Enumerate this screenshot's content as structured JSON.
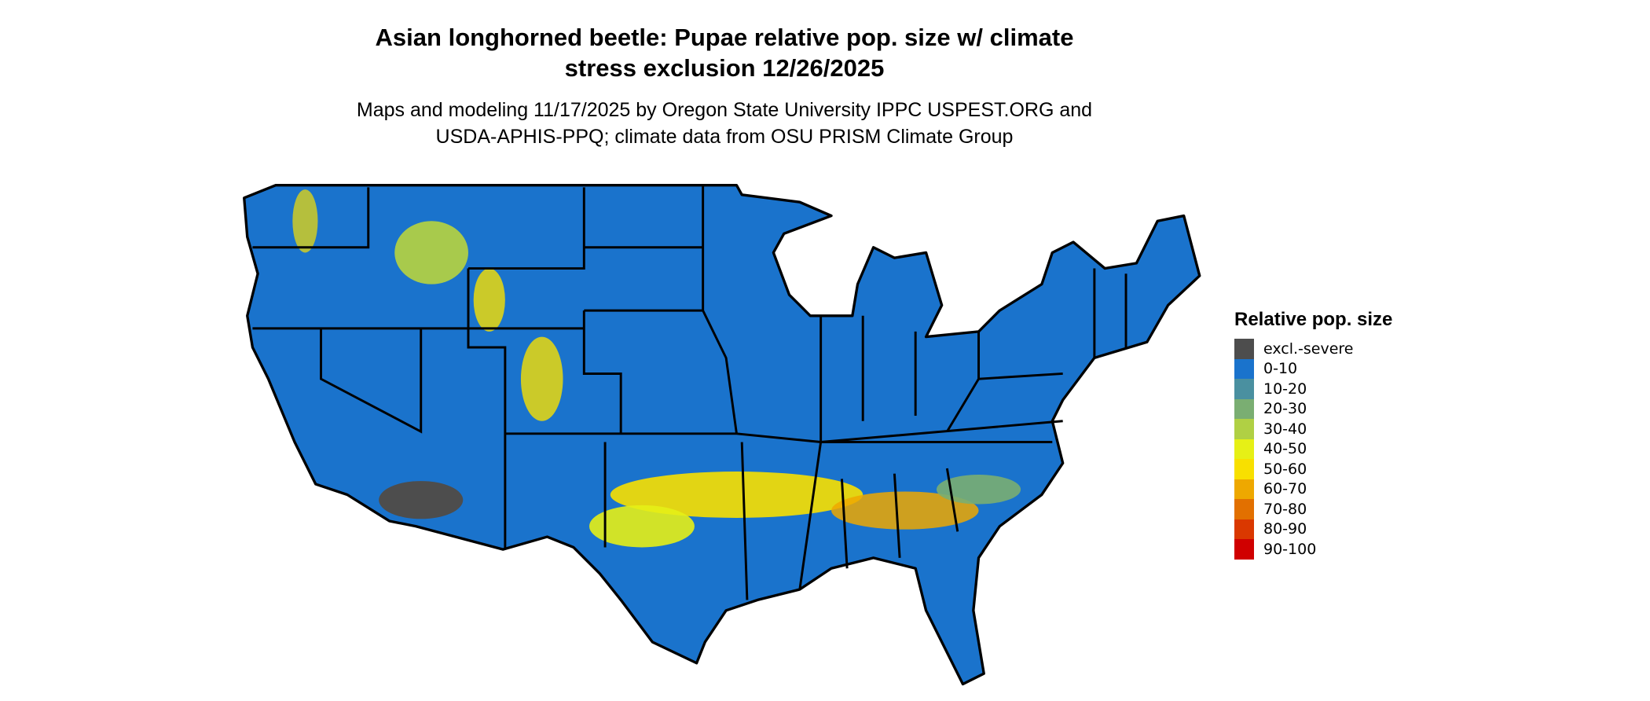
{
  "title": {
    "line1": "Asian longhorned beetle: Pupae relative pop. size w/ climate",
    "line2": "stress exclusion 12/26/2025"
  },
  "subtitle": {
    "line1": "Maps and modeling 11/17/2025 by Oregon State University IPPC USPEST.ORG and",
    "line2": "USDA-APHIS-PPQ; climate data from OSU PRISM Climate Group"
  },
  "map": {
    "region": "Contiguous United States",
    "base_color": "#1a73cc",
    "border_color": "#000000"
  },
  "legend": {
    "title": "Relative pop. size",
    "items": [
      {
        "label": "excl.-severe",
        "color": "#4d4d4d"
      },
      {
        "label": "0-10",
        "color": "#1a73cc"
      },
      {
        "label": "10-20",
        "color": "#4a90a0"
      },
      {
        "label": "20-30",
        "color": "#7aae72"
      },
      {
        "label": "30-40",
        "color": "#b0d044"
      },
      {
        "label": "40-50",
        "color": "#e6f016"
      },
      {
        "label": "50-60",
        "color": "#f8e000"
      },
      {
        "label": "60-70",
        "color": "#eea800"
      },
      {
        "label": "70-80",
        "color": "#e27000"
      },
      {
        "label": "80-90",
        "color": "#da3800"
      },
      {
        "label": "90-100",
        "color": "#d00000"
      }
    ]
  }
}
